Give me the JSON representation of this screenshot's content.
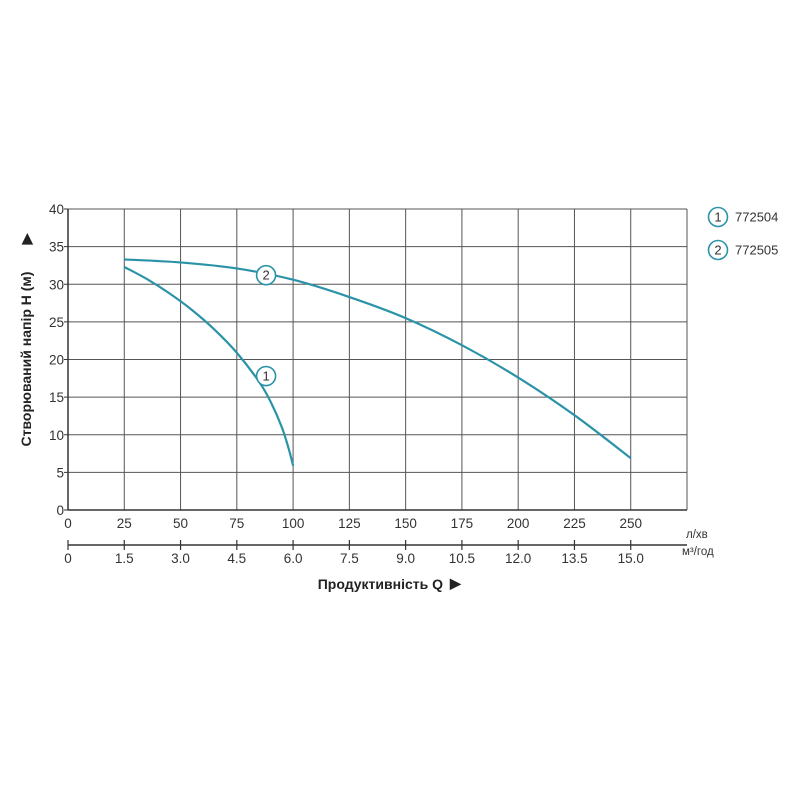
{
  "chart_data": {
    "type": "line",
    "xlabel": "Продуктивність Q",
    "ylabel": "Створюваний напір H (м)",
    "x_unit_primary": "л/хв",
    "x_unit_secondary": "м³/год",
    "xlim": [
      0,
      275
    ],
    "ylim": [
      0,
      40
    ],
    "x_ticks_primary": [
      "0",
      "25",
      "50",
      "75",
      "100",
      "125",
      "150",
      "175",
      "200",
      "225",
      "250"
    ],
    "x_ticks_secondary": [
      "0",
      "1.5",
      "3.0",
      "4.5",
      "6.0",
      "7.5",
      "9.0",
      "10.5",
      "12.0",
      "13.5",
      "15.0"
    ],
    "y_ticks": [
      "0",
      "5",
      "10",
      "15",
      "20",
      "25",
      "30",
      "35",
      "40"
    ],
    "grid": true,
    "series": [
      {
        "name": "772504",
        "marker_label": "1",
        "color": "#2a93a8",
        "x": [
          25,
          35,
          45,
          55,
          65,
          75,
          85,
          90,
          95,
          98,
          100
        ],
        "y": [
          32.3,
          30.7,
          28.8,
          26.6,
          24.0,
          20.9,
          17.0,
          14.4,
          11.0,
          8.2,
          5.9
        ]
      },
      {
        "name": "772505",
        "marker_label": "2",
        "color": "#2a93a8",
        "x": [
          25,
          50,
          75,
          100,
          125,
          150,
          175,
          200,
          225,
          250
        ],
        "y": [
          33.3,
          32.9,
          32.1,
          30.6,
          28.3,
          25.5,
          21.9,
          17.6,
          12.6,
          6.9
        ]
      }
    ],
    "legend_position": "top-right"
  }
}
